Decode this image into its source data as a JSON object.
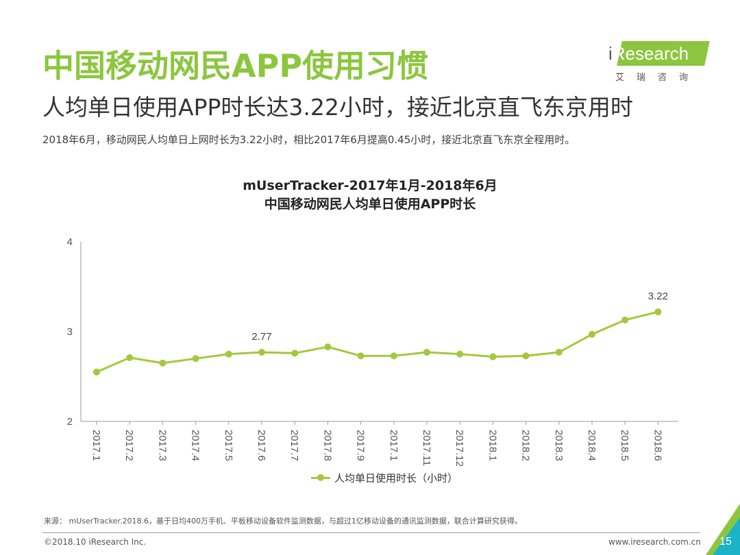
{
  "header": {
    "title": "中国移动网民APP使用习惯",
    "subtitle": "人均单日使用APP时长达3.22小时，接近北京直飞东京用时",
    "summary": "2018年6月，移动网民人均单日上网时长为3.22小时，相比2017年6月提高0.45小时，接近北京直飞东京全程用时。"
  },
  "logo": {
    "brand_i": "i",
    "brand_rest": "Research",
    "chinese": "艾瑞咨询",
    "color": "#8cc63f"
  },
  "chart_data": {
    "type": "line",
    "title": "mUserTracker-2017年1月-2018年6月",
    "subtitle": "中国移动网民人均单日使用APP时长",
    "categories": [
      "2017.1",
      "2017.2",
      "2017.3",
      "2017.4",
      "2017.5",
      "2017.6",
      "2017.7",
      "2017.8",
      "2017.9",
      "2017.1",
      "2017.11",
      "2017.12",
      "2018.1",
      "2018.2",
      "2018.3",
      "2018.4",
      "2018.5",
      "2018.6"
    ],
    "series": [
      {
        "name": "人均单日使用时长（小时）",
        "color": "#a4c83c",
        "values": [
          2.55,
          2.71,
          2.65,
          2.7,
          2.75,
          2.77,
          2.76,
          2.83,
          2.73,
          2.73,
          2.77,
          2.75,
          2.72,
          2.73,
          2.77,
          2.97,
          3.13,
          3.22
        ]
      }
    ],
    "ylim": [
      2,
      4
    ],
    "yticks": [
      "2",
      "3",
      "4"
    ],
    "data_labels": [
      {
        "index": 5,
        "text": "2.77"
      },
      {
        "index": 17,
        "text": "3.22"
      }
    ],
    "grid": false,
    "legend_position": "bottom"
  },
  "footer": {
    "source": "来源： mUserTracker.2018.6，基于日均400万手机、平板移动设备软件监测数据，与超过1亿移动设备的通讯监测数据，联合计算研究获得。",
    "copyright": "©2018.10 iResearch Inc.",
    "website": "www.iresearch.com.cn",
    "page_number": "15"
  }
}
